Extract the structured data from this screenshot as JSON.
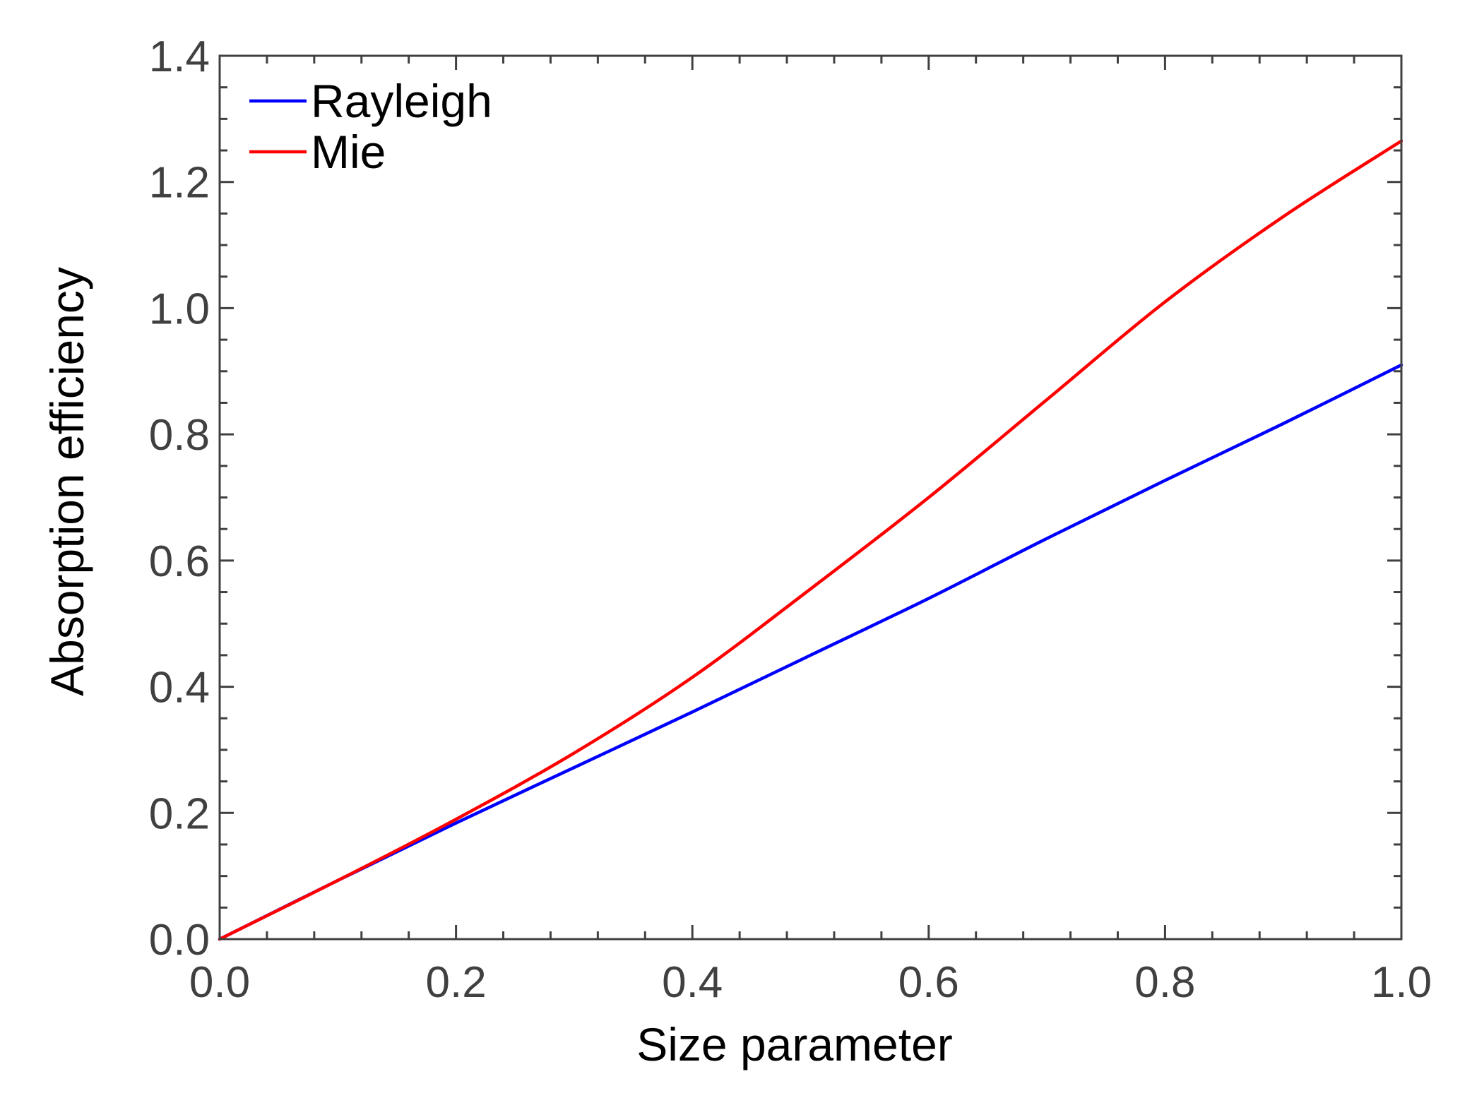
{
  "chart_data": {
    "type": "line",
    "title": "",
    "xlabel": "Size parameter",
    "ylabel": "Absorption efficiency",
    "xlim": [
      0.0,
      1.0
    ],
    "ylim": [
      0.0,
      1.4
    ],
    "x_ticks": [
      "0.0",
      "0.2",
      "0.4",
      "0.6",
      "0.8",
      "1.0"
    ],
    "y_ticks": [
      "0.0",
      "0.2",
      "0.4",
      "0.6",
      "0.8",
      "1.0",
      "1.2",
      "1.4"
    ],
    "x_tick_values": [
      0.0,
      0.2,
      0.4,
      0.6,
      0.8,
      1.0
    ],
    "y_tick_values": [
      0.0,
      0.2,
      0.4,
      0.6,
      0.8,
      1.0,
      1.2,
      1.4
    ],
    "grid": false,
    "legend_position": "top-left",
    "series": [
      {
        "name": "Rayleigh",
        "color": "#0000ff",
        "x": [
          0.0,
          0.1,
          0.2,
          0.3,
          0.4,
          0.5,
          0.6,
          0.7,
          0.8,
          0.9,
          1.0
        ],
        "y": [
          0.0,
          0.093,
          0.184,
          0.272,
          0.36,
          0.45,
          0.54,
          0.635,
          0.727,
          0.817,
          0.91
        ]
      },
      {
        "name": "Mie",
        "color": "#ff0000",
        "x": [
          0.0,
          0.1,
          0.2,
          0.3,
          0.4,
          0.5,
          0.6,
          0.7,
          0.8,
          0.9,
          1.0
        ],
        "y": [
          0.0,
          0.093,
          0.19,
          0.295,
          0.415,
          0.555,
          0.7,
          0.855,
          1.01,
          1.145,
          1.265
        ]
      }
    ]
  }
}
